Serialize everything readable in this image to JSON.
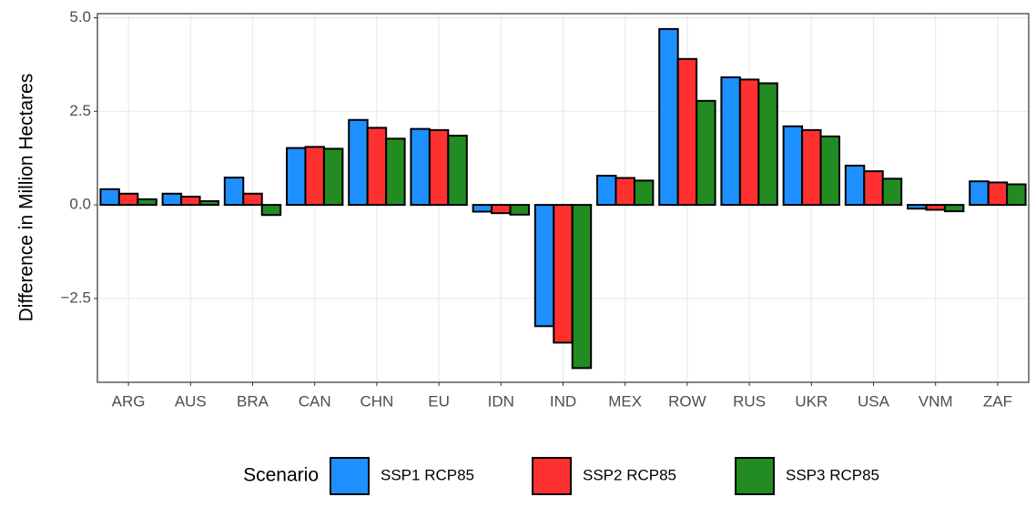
{
  "chart_data": {
    "type": "bar",
    "y_label": "Difference in Million Hectares",
    "legend_title": "Scenario",
    "legend": "bottom",
    "grid": true,
    "categories": [
      "ARG",
      "AUS",
      "BRA",
      "CAN",
      "CHN",
      "EU",
      "IDN",
      "IND",
      "MEX",
      "ROW",
      "RUS",
      "UKR",
      "USA",
      "VNM",
      "ZAF"
    ],
    "series": [
      {
        "name": "SSP1 RCP85",
        "color": "#1e90ff",
        "values": [
          0.42,
          0.3,
          0.73,
          1.52,
          2.27,
          2.03,
          -0.18,
          -3.24,
          0.78,
          4.7,
          3.41,
          2.1,
          1.05,
          -0.1,
          0.63
        ]
      },
      {
        "name": "SSP2 RCP85",
        "color": "#ff3030",
        "values": [
          0.3,
          0.22,
          0.3,
          1.55,
          2.06,
          2.0,
          -0.22,
          -3.68,
          0.72,
          3.9,
          3.35,
          2.0,
          0.9,
          -0.13,
          0.6
        ]
      },
      {
        "name": "SSP3 RCP85",
        "color": "#228b22",
        "values": [
          0.15,
          0.1,
          -0.27,
          1.5,
          1.77,
          1.85,
          -0.26,
          -4.36,
          0.65,
          2.78,
          3.25,
          1.83,
          0.7,
          -0.17,
          0.55
        ]
      }
    ],
    "ylim": [
      -4.74,
      5.11
    ],
    "yticks": [
      {
        "value": -2.5,
        "label": "−2.5"
      },
      {
        "value": 0,
        "label": "0.0"
      },
      {
        "value": 2.5,
        "label": "2.5"
      },
      {
        "value": 5,
        "label": "5.0"
      }
    ]
  }
}
